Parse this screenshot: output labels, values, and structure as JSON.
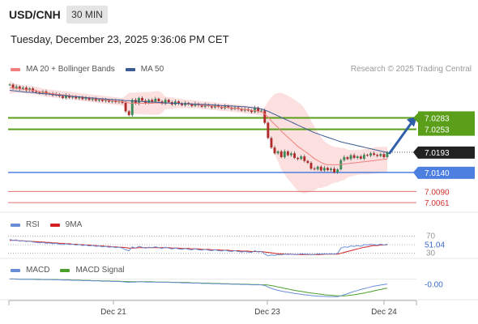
{
  "header": {
    "symbol": "USD/CNH",
    "interval": "30 MIN",
    "datetime": "Tuesday, December 23, 2025 9:36:06 PM CET"
  },
  "copyright": "Research © 2025 Trading Central",
  "colors": {
    "ma20": "#f08080",
    "ma50": "#3b5b92",
    "resistance": "#5a9e1a",
    "support": "#4d7fe0",
    "support_minor": "#e07070",
    "arrow": "#2f5fa8",
    "rsi": "#6a8ed6",
    "rsi_ma": "#d22020",
    "macd": "#6a8ed6",
    "macd_signal": "#4aa02a"
  },
  "chart_data": [
    {
      "type": "candlestick",
      "legend": [
        {
          "name": "MA 20 + Bollinger Bands",
          "color": "#f08080"
        },
        {
          "name": "MA 50",
          "color": "#3b5b92"
        }
      ],
      "x_ticks": [
        "Dec 21",
        "Dec 23",
        "Dec 24"
      ],
      "y_range": [
        7.004,
        7.039
      ],
      "close_series": [
        7.037,
        7.036,
        7.0365,
        7.0358,
        7.0362,
        7.0355,
        7.036,
        7.0352,
        7.035,
        7.0348,
        7.0352,
        7.0345,
        7.0347,
        7.0342,
        7.0345,
        7.034,
        7.0335,
        7.0342,
        7.0336,
        7.0338,
        7.0334,
        7.0337,
        7.0332,
        7.0335,
        7.033,
        7.0333,
        7.0328,
        7.0331,
        7.0327,
        7.033,
        7.0325,
        7.0328,
        7.0324,
        7.0327,
        7.0322,
        7.03,
        7.029,
        7.033,
        7.032,
        7.0335,
        7.0328,
        7.0322,
        7.033,
        7.0325,
        7.0333,
        7.0326,
        7.032,
        7.033,
        7.0324,
        7.0318,
        7.0326,
        7.032,
        7.0316,
        7.0322,
        7.0318,
        7.0314,
        7.032,
        7.0316,
        7.0312,
        7.0318,
        7.0314,
        7.031,
        7.0316,
        7.0312,
        7.0308,
        7.0314,
        7.031,
        7.0306,
        7.031,
        7.0306,
        7.0302,
        7.0306,
        7.0302,
        7.0298,
        7.031,
        7.03,
        7.0302,
        7.027,
        7.023,
        7.0205,
        7.019,
        7.0195,
        7.018,
        7.0195,
        7.0185,
        7.019,
        7.0178,
        7.0175,
        7.0182,
        7.017,
        7.0165,
        7.015,
        7.0148,
        7.0155,
        7.0145,
        7.0152,
        7.0146,
        7.015,
        7.014,
        7.0148,
        7.0172,
        7.018,
        7.0175,
        7.0185,
        7.0178,
        7.0182,
        7.0176,
        7.0186,
        7.0184,
        7.019,
        7.0186,
        7.0183,
        7.0188,
        7.018,
        7.0193
      ],
      "ma20": [
        7.0362,
        7.0361,
        7.036,
        7.0359,
        7.0358,
        7.0357,
        7.0356,
        7.0355,
        7.0354,
        7.0352,
        7.035,
        7.0348,
        7.0347,
        7.0346,
        7.0345,
        7.0344,
        7.0343,
        7.0342,
        7.0341,
        7.034,
        7.0339,
        7.0338,
        7.0337,
        7.0336,
        7.0335,
        7.0334,
        7.0333,
        7.0332,
        7.0331,
        7.033,
        7.0329,
        7.0328,
        7.0327,
        7.0326,
        7.0325,
        7.0324,
        7.0322,
        7.0321,
        7.0321,
        7.0321,
        7.0321,
        7.0321,
        7.0321,
        7.0321,
        7.0322,
        7.0322,
        7.0322,
        7.0322,
        7.0322,
        7.0321,
        7.0321,
        7.0321,
        7.032,
        7.032,
        7.0319,
        7.0319,
        7.0318,
        7.0317,
        7.0316,
        7.0316,
        7.0315,
        7.0314,
        7.0313,
        7.0312,
        7.0311,
        7.0311,
        7.031,
        7.0309,
        7.0308,
        7.0307,
        7.0306,
        7.0305,
        7.0304,
        7.0303,
        7.0302,
        7.03,
        7.0298,
        7.0293,
        7.0285,
        7.0275,
        7.0266,
        7.0258,
        7.0248,
        7.024,
        7.0232,
        7.0224,
        7.0216,
        7.0208,
        7.0202,
        7.0196,
        7.019,
        7.0183,
        7.0176,
        7.0171,
        7.0166,
        7.0162,
        7.016,
        7.016,
        7.016,
        7.016,
        7.0161,
        7.0162,
        7.0163,
        7.0164,
        7.0165,
        7.0166,
        7.0167,
        7.0168,
        7.0169,
        7.017,
        7.0171,
        7.0172,
        7.0173,
        7.0174,
        7.0175
      ],
      "ma50": [
        7.0355,
        7.0354,
        7.0353,
        7.0352,
        7.0351,
        7.035,
        7.035,
        7.0349,
        7.0348,
        7.0347,
        7.0346,
        7.0346,
        7.0345,
        7.0344,
        7.0343,
        7.0342,
        7.0342,
        7.0341,
        7.034,
        7.0339,
        7.0338,
        7.0338,
        7.0337,
        7.0336,
        7.0335,
        7.0335,
        7.0334,
        7.0333,
        7.0333,
        7.0332,
        7.0331,
        7.0331,
        7.033,
        7.033,
        7.0329,
        7.0328,
        7.0328,
        7.0327,
        7.0327,
        7.0326,
        7.0326,
        7.0325,
        7.0325,
        7.0324,
        7.0324,
        7.0323,
        7.0323,
        7.0322,
        7.0322,
        7.0321,
        7.0321,
        7.0321,
        7.032,
        7.032,
        7.032,
        7.0319,
        7.0319,
        7.0318,
        7.0318,
        7.0318,
        7.0317,
        7.0317,
        7.0316,
        7.0316,
        7.0315,
        7.0315,
        7.0314,
        7.0314,
        7.0313,
        7.0313,
        7.0312,
        7.0312,
        7.0311,
        7.031,
        7.0309,
        7.0308,
        7.0306,
        7.0303,
        7.03,
        7.0296,
        7.0292,
        7.0288,
        7.0284,
        7.028,
        7.0276,
        7.0272,
        7.0268,
        7.0264,
        7.026,
        7.0256,
        7.0252,
        7.0248,
        7.0244,
        7.0241,
        7.0238,
        7.0235,
        7.0232,
        7.0229,
        7.0226,
        7.0223,
        7.022,
        7.0218,
        7.0216,
        7.0214,
        7.0212,
        7.021,
        7.0208,
        7.0206,
        7.0204,
        7.0202,
        7.02,
        7.0198,
        7.0196,
        7.0194,
        7.0192
      ],
      "levels": {
        "resistance": [
          {
            "label": "7.0283",
            "value": 7.0283
          },
          {
            "label": "7.0253",
            "value": 7.0253
          }
        ],
        "last_price": {
          "label": "7.0193",
          "value": 7.0193
        },
        "support": {
          "label": "7.0140",
          "value": 7.014
        },
        "support_minor": [
          {
            "label": "7.0090",
            "value": 7.009
          },
          {
            "label": "7.0061",
            "value": 7.0061
          }
        ]
      }
    },
    {
      "type": "line",
      "legend": [
        {
          "name": "RSI",
          "color": "#6a8ed6"
        },
        {
          "name": "9MA",
          "color": "#d22020"
        }
      ],
      "y_range": [
        20,
        80
      ],
      "guides": [
        70,
        50,
        30
      ],
      "last_value": "51.04",
      "rsi": [
        62,
        60,
        61,
        58,
        59,
        57,
        58,
        56,
        55,
        54,
        55,
        53,
        54,
        52,
        53,
        51,
        50,
        52,
        50,
        51,
        49,
        50,
        48,
        49,
        47,
        48,
        46,
        47,
        45,
        46,
        44,
        45,
        43,
        44,
        42,
        38,
        36,
        45,
        42,
        46,
        44,
        42,
        44,
        43,
        45,
        43,
        41,
        44,
        42,
        40,
        42,
        40,
        39,
        41,
        39,
        38,
        40,
        38,
        37,
        39,
        37,
        36,
        38,
        36,
        35,
        37,
        35,
        34,
        36,
        34,
        33,
        34,
        33,
        32,
        36,
        33,
        34,
        28,
        24,
        26,
        25,
        27,
        26,
        28,
        27,
        28,
        27,
        27,
        29,
        28,
        28,
        27,
        27,
        29,
        28,
        29,
        28,
        29,
        28,
        30,
        42,
        45,
        44,
        47,
        46,
        48,
        46,
        50,
        49,
        51,
        50,
        49,
        51,
        49,
        51.04
      ],
      "rsi_ma": [
        60,
        60,
        60,
        59,
        59,
        58,
        58,
        57,
        57,
        56,
        56,
        55,
        55,
        54,
        54,
        53,
        53,
        52,
        52,
        51,
        51,
        50,
        50,
        49,
        49,
        48,
        48,
        47,
        47,
        46,
        46,
        45,
        45,
        44,
        44,
        43,
        42,
        42,
        42,
        43,
        43,
        43,
        43,
        43,
        43,
        43,
        43,
        43,
        43,
        42,
        42,
        42,
        41,
        41,
        41,
        40,
        40,
        40,
        39,
        39,
        39,
        38,
        38,
        38,
        37,
        37,
        37,
        36,
        36,
        36,
        35,
        35,
        35,
        34,
        34,
        34,
        34,
        33,
        32,
        31,
        30,
        29,
        29,
        28,
        28,
        28,
        27,
        27,
        27,
        27,
        27,
        27,
        27,
        27,
        27,
        28,
        28,
        28,
        28,
        28,
        30,
        32,
        34,
        36,
        38,
        40,
        42,
        44,
        45,
        47,
        48,
        48,
        49,
        49,
        50
      ]
    },
    {
      "type": "line",
      "legend": [
        {
          "name": "MACD",
          "color": "#6a8ed6"
        },
        {
          "name": "MACD Signal",
          "color": "#4aa02a"
        }
      ],
      "y_range": [
        -0.0075,
        0.001
      ],
      "last_value": "-0.00",
      "macd": [
        0.0,
        0.0,
        -0.0001,
        -0.0001,
        -0.0001,
        -0.0001,
        -0.0001,
        -0.0001,
        -0.0002,
        -0.0002,
        -0.0002,
        -0.0002,
        -0.0002,
        -0.0003,
        -0.0003,
        -0.0003,
        -0.0004,
        -0.0004,
        -0.0004,
        -0.0005,
        -0.0005,
        -0.0005,
        -0.0006,
        -0.0006,
        -0.0006,
        -0.0007,
        -0.0007,
        -0.0007,
        -0.0008,
        -0.0008,
        -0.0008,
        -0.0009,
        -0.0009,
        -0.0009,
        -0.001,
        -0.0011,
        -0.0012,
        -0.0011,
        -0.0011,
        -0.001,
        -0.001,
        -0.0011,
        -0.0011,
        -0.0011,
        -0.0011,
        -0.0011,
        -0.0012,
        -0.0012,
        -0.0012,
        -0.0013,
        -0.0013,
        -0.0013,
        -0.0014,
        -0.0014,
        -0.0014,
        -0.0015,
        -0.0015,
        -0.0015,
        -0.0016,
        -0.0016,
        -0.0016,
        -0.0017,
        -0.0017,
        -0.0017,
        -0.0018,
        -0.0018,
        -0.0018,
        -0.0019,
        -0.0019,
        -0.0019,
        -0.002,
        -0.002,
        -0.002,
        -0.0021,
        -0.0021,
        -0.0021,
        -0.0021,
        -0.0024,
        -0.0029,
        -0.0034,
        -0.0038,
        -0.0041,
        -0.0044,
        -0.0046,
        -0.0048,
        -0.005,
        -0.0052,
        -0.0054,
        -0.0055,
        -0.0057,
        -0.0058,
        -0.006,
        -0.0061,
        -0.0062,
        -0.0063,
        -0.0063,
        -0.0064,
        -0.0064,
        -0.0064,
        -0.0064,
        -0.0061,
        -0.0057,
        -0.0053,
        -0.0049,
        -0.0045,
        -0.0042,
        -0.0038,
        -0.0035,
        -0.0032,
        -0.0029,
        -0.0026,
        -0.0024,
        -0.0022,
        -0.002,
        -0.0018
      ],
      "macd_signal": [
        0.0,
        0.0,
        0.0,
        -0.0001,
        -0.0001,
        -0.0001,
        -0.0001,
        -0.0001,
        -0.0001,
        -0.0001,
        -0.0002,
        -0.0002,
        -0.0002,
        -0.0002,
        -0.0002,
        -0.0003,
        -0.0003,
        -0.0003,
        -0.0003,
        -0.0004,
        -0.0004,
        -0.0004,
        -0.0005,
        -0.0005,
        -0.0005,
        -0.0006,
        -0.0006,
        -0.0006,
        -0.0007,
        -0.0007,
        -0.0007,
        -0.0008,
        -0.0008,
        -0.0008,
        -0.0009,
        -0.0009,
        -0.001,
        -0.001,
        -0.001,
        -0.001,
        -0.001,
        -0.001,
        -0.001,
        -0.001,
        -0.0011,
        -0.0011,
        -0.0011,
        -0.0011,
        -0.0011,
        -0.0012,
        -0.0012,
        -0.0012,
        -0.0013,
        -0.0013,
        -0.0013,
        -0.0014,
        -0.0014,
        -0.0014,
        -0.0015,
        -0.0015,
        -0.0015,
        -0.0016,
        -0.0016,
        -0.0016,
        -0.0017,
        -0.0017,
        -0.0017,
        -0.0018,
        -0.0018,
        -0.0018,
        -0.0019,
        -0.0019,
        -0.0019,
        -0.002,
        -0.002,
        -0.002,
        -0.0021,
        -0.0021,
        -0.0022,
        -0.0024,
        -0.0026,
        -0.0029,
        -0.0031,
        -0.0034,
        -0.0036,
        -0.0039,
        -0.0041,
        -0.0043,
        -0.0045,
        -0.0047,
        -0.0049,
        -0.0051,
        -0.0052,
        -0.0054,
        -0.0055,
        -0.0057,
        -0.0058,
        -0.0059,
        -0.006,
        -0.0061,
        -0.0061,
        -0.0061,
        -0.006,
        -0.0059,
        -0.0057,
        -0.0055,
        -0.0053,
        -0.0051,
        -0.0048,
        -0.0046,
        -0.0043,
        -0.004,
        -0.0038,
        -0.0035,
        -0.0033
      ]
    }
  ]
}
